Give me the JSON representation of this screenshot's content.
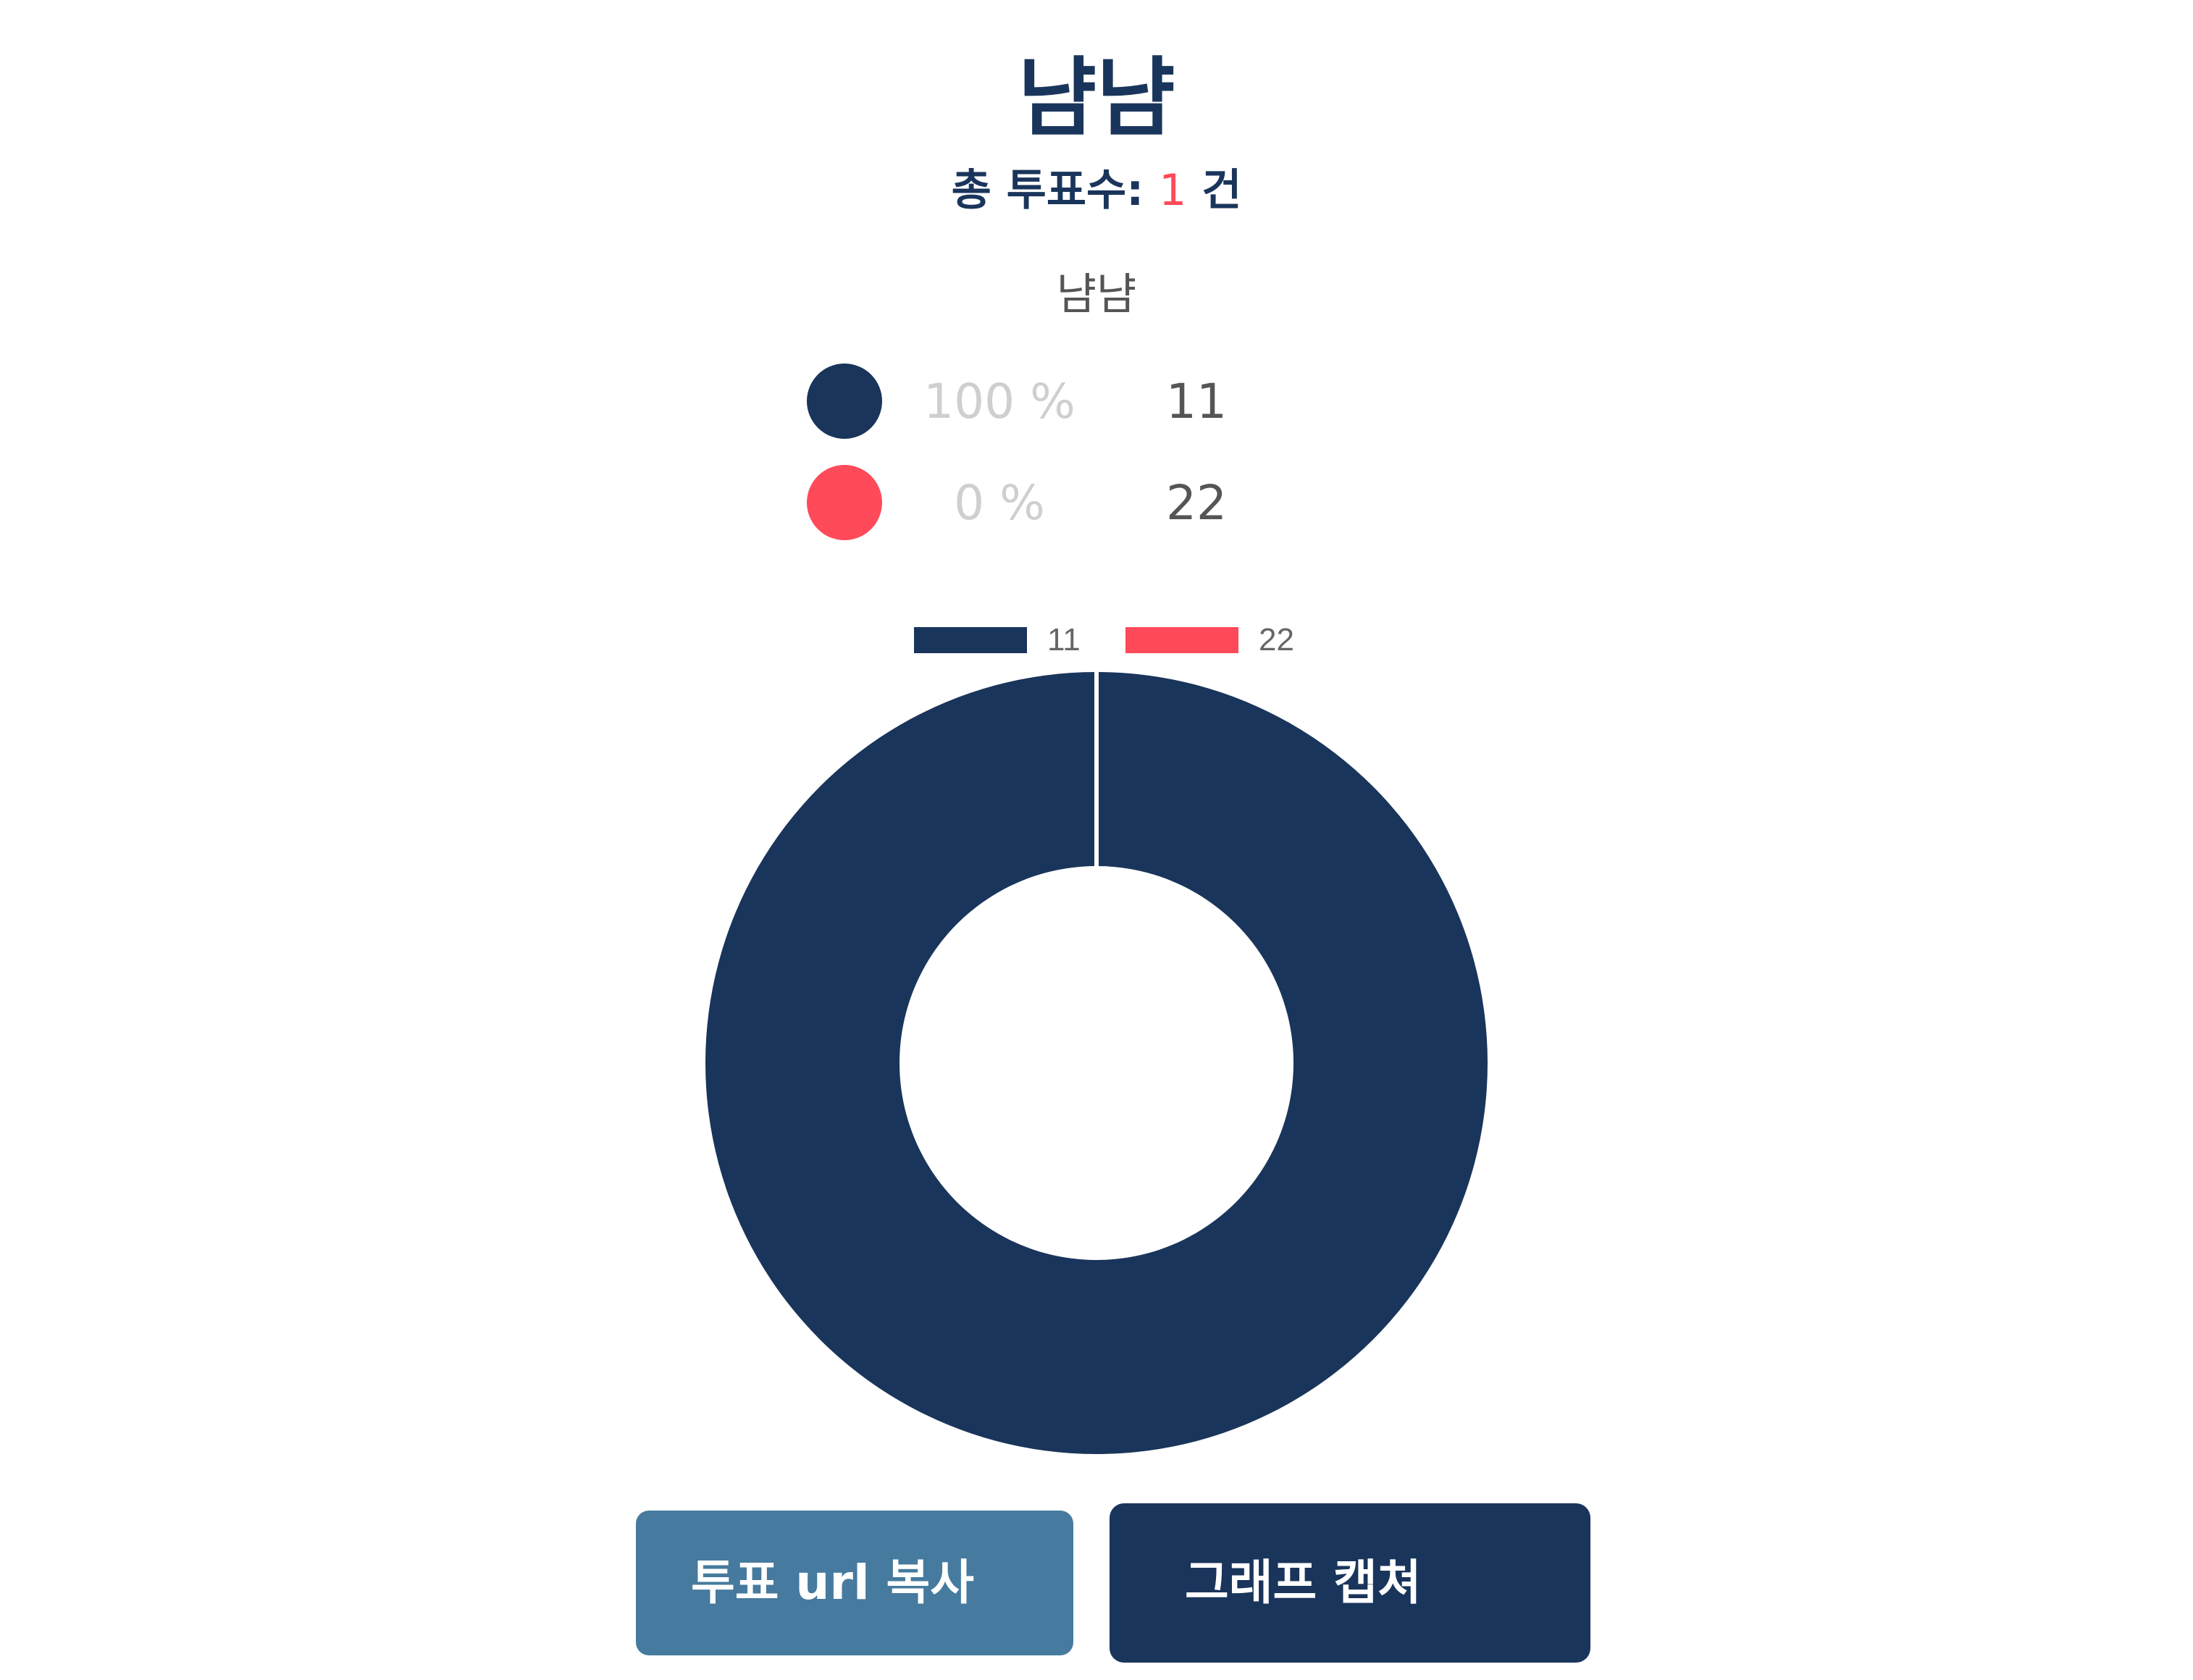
{
  "title": "냠냠",
  "total": {
    "prefix": "총 투표수:",
    "count": "1",
    "suffix": "건"
  },
  "question": "냠냠",
  "options": [
    {
      "label": "11",
      "percent": "100 %",
      "color": "#1a355b",
      "icon": "option-dot"
    },
    {
      "label": "22",
      "percent": "0 %",
      "color": "#ff4a5a",
      "icon": "option-dot"
    }
  ],
  "chart_data": {
    "type": "pie",
    "donut": true,
    "categories": [
      "11",
      "22"
    ],
    "values": [
      1,
      0
    ],
    "colors": [
      "#1a355b",
      "#ff4a5a"
    ],
    "legend": "top",
    "title": ""
  },
  "buttons": {
    "copy_url": "투표 url 복사",
    "capture": "그래프 캡쳐"
  }
}
